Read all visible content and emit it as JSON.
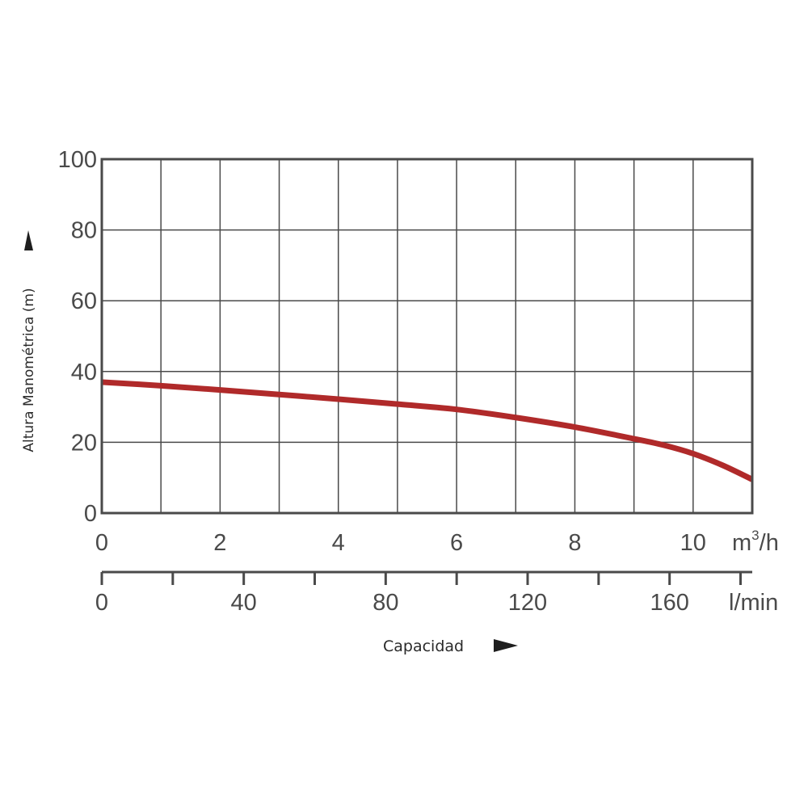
{
  "chart_data": {
    "type": "line",
    "ylabel": "Altura Manométrica (m)",
    "xlabel": "Capacidad",
    "ylim": [
      0,
      100
    ],
    "yticks": [
      "0",
      "20",
      "40",
      "60",
      "80",
      "100"
    ],
    "x_m3h": {
      "unit_base": "m",
      "unit_sup": "3",
      "unit_tail": "/h",
      "ticks": [
        "0",
        "2",
        "4",
        "6",
        "8",
        "10"
      ],
      "range": [
        0,
        11
      ]
    },
    "x_lmin": {
      "unit": "l/min",
      "ticks": [
        "0",
        "40",
        "80",
        "120",
        "160"
      ],
      "range": [
        0,
        183.3
      ]
    },
    "grid": true,
    "series": [
      {
        "color": "#b02a2a",
        "x": [
          0,
          1,
          2,
          3,
          4,
          5,
          6,
          7,
          8,
          9,
          9.5,
          10,
          10.5,
          11
        ],
        "y": [
          37,
          36,
          34.8,
          33.5,
          32.2,
          30.8,
          29.3,
          27,
          24.3,
          21,
          19.2,
          16.8,
          13.5,
          9.5
        ]
      }
    ]
  }
}
